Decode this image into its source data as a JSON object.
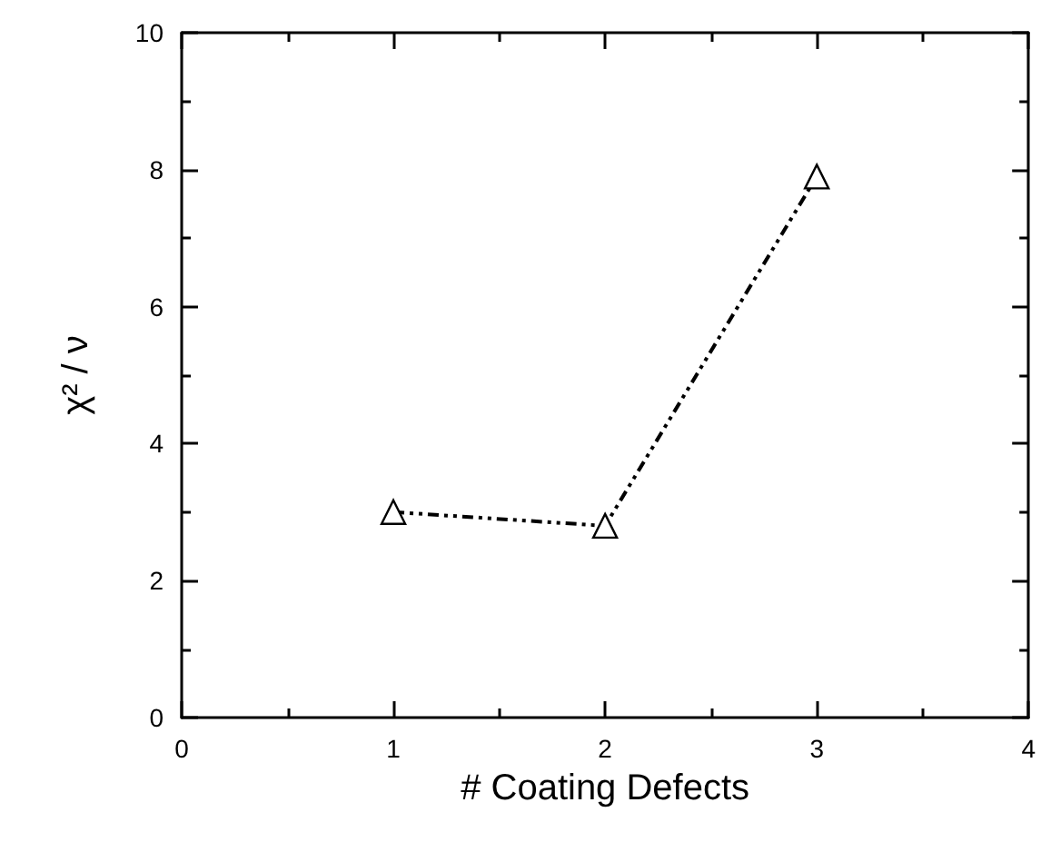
{
  "chart_data": {
    "type": "line",
    "xlabel": "# Coating Defects",
    "ylabel": "χ² / ν",
    "x": [
      1,
      2,
      3
    ],
    "series": [
      {
        "color": "#000000",
        "values": [
          3.0,
          2.8,
          7.9
        ]
      }
    ],
    "xlim": [
      0,
      4
    ],
    "xticks": [
      0,
      1,
      2,
      3,
      4
    ],
    "ylim": [
      0,
      10
    ],
    "yticks": [
      0,
      2,
      4,
      6,
      8,
      10
    ],
    "grid": false,
    "marker": "triangle",
    "line_style": "dashed"
  }
}
